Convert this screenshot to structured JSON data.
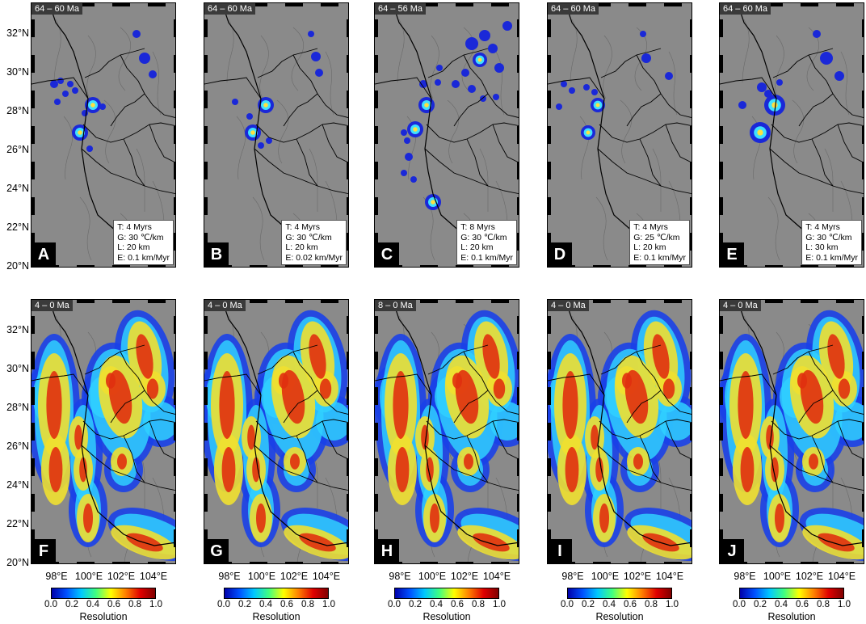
{
  "top_panels": [
    {
      "letter": "A",
      "age": "64 – 60 Ma",
      "params": [
        "T: 4 Myrs",
        "G: 30 ℃/km",
        "L: 20 km",
        "E: 0.1 km/Myr"
      ]
    },
    {
      "letter": "B",
      "age": "64 – 60 Ma",
      "params": [
        "T: 4 Myrs",
        "G: 30 ℃/km",
        "L: 20 km",
        "E: 0.02 km/Myr"
      ]
    },
    {
      "letter": "C",
      "age": "64 – 56 Ma",
      "params": [
        "T: 8 Myrs",
        "G: 30 ℃/km",
        "L: 20 km",
        "E: 0.1 km/Myr"
      ]
    },
    {
      "letter": "D",
      "age": "64 – 60 Ma",
      "params": [
        "T: 4 Myrs",
        "G: 25 ℃/km",
        "L: 20 km",
        "E: 0.1 km/Myr"
      ]
    },
    {
      "letter": "E",
      "age": "64 – 60 Ma",
      "params": [
        "T: 4 Myrs",
        "G: 30 ℃/km",
        "L: 30 km",
        "E: 0.1 km/Myr"
      ]
    }
  ],
  "bottom_panels": [
    {
      "letter": "F",
      "age": "4 – 0 Ma"
    },
    {
      "letter": "G",
      "age": "4 – 0 Ma"
    },
    {
      "letter": "H",
      "age": "8 – 0 Ma"
    },
    {
      "letter": "I",
      "age": "4 – 0 Ma"
    },
    {
      "letter": "J",
      "age": "4 – 0 Ma"
    }
  ],
  "lat_labels": [
    "32°N",
    "30°N",
    "28°N",
    "26°N",
    "24°N",
    "22°N",
    "20°N"
  ],
  "lon_labels": [
    "98°E",
    "100°E",
    "102°E",
    "104°E"
  ],
  "colorbar": {
    "title": "Resolution",
    "ticks": [
      "0.0",
      "0.2",
      "0.4",
      "0.6",
      "0.8",
      "1.0"
    ]
  },
  "colors": {
    "background": "#8a8a8a",
    "low": "#0000aa",
    "high": "#c00000"
  }
}
